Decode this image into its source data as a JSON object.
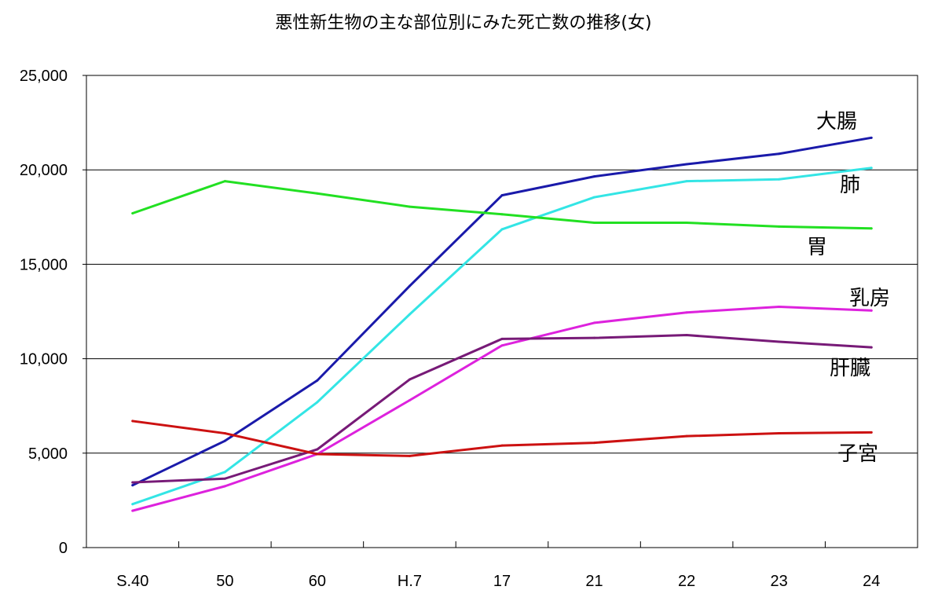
{
  "chart_data": {
    "type": "line",
    "title": "悪性新生物の主な部位別にみた死亡数の推移(女)",
    "xlabel": "",
    "ylabel": "",
    "categories": [
      "S.40",
      "50",
      "60",
      "H.7",
      "17",
      "21",
      "22",
      "23",
      "24"
    ],
    "ylim": [
      0,
      25000
    ],
    "y_ticks": [
      0,
      5000,
      10000,
      15000,
      20000,
      25000
    ],
    "y_tick_labels": [
      "0",
      "5,000",
      "10,000",
      "15,000",
      "20,000",
      "25,000"
    ],
    "grid": true,
    "legend": "none (series labelled at right end of lines)",
    "series": [
      {
        "name": "大腸",
        "color": "#1a1aaa",
        "values": [
          3300,
          5650,
          8850,
          13850,
          18650,
          19650,
          20300,
          20850,
          21700
        ]
      },
      {
        "name": "肺",
        "color": "#33e5e5",
        "values": [
          2300,
          4000,
          7700,
          12350,
          16850,
          18550,
          19400,
          19500,
          20100
        ]
      },
      {
        "name": "胃",
        "color": "#22e022",
        "values": [
          17700,
          19400,
          18750,
          18050,
          17650,
          17200,
          17200,
          17000,
          16900
        ]
      },
      {
        "name": "乳房",
        "color": "#dd22dd",
        "values": [
          1950,
          3250,
          4950,
          7800,
          10700,
          11900,
          12450,
          12750,
          12550
        ]
      },
      {
        "name": "肝臓",
        "color": "#771a77",
        "values": [
          3450,
          3650,
          5200,
          8900,
          11050,
          11100,
          11250,
          10900,
          10600
        ]
      },
      {
        "name": "子宮",
        "color": "#cc1111",
        "values": [
          6700,
          6050,
          4950,
          4850,
          5400,
          5550,
          5900,
          6050,
          6100
        ]
      }
    ]
  }
}
